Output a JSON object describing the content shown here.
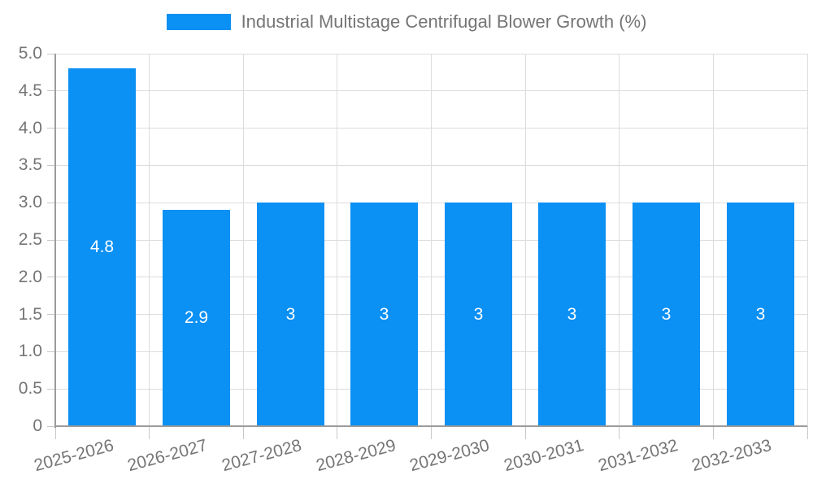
{
  "legend": {
    "label": "Industrial Multistage Centrifugal Blower Growth (%)"
  },
  "colors": {
    "bar": "#0b90f4",
    "grid": "#dcdcdc",
    "axis": "#9b9b9b",
    "tick": "#c8c8c8",
    "axis_text": "#757575",
    "bar_label_text": "#ffffff",
    "background": "#ffffff"
  },
  "chart_data": {
    "type": "bar",
    "title": "Industrial Multistage Centrifugal Blower Growth (%)",
    "categories": [
      "2025-2026",
      "2026-2027",
      "2027-2028",
      "2028-2029",
      "2029-2030",
      "2030-2031",
      "2031-2032",
      "2032-2033"
    ],
    "values": [
      4.8,
      2.9,
      3,
      3,
      3,
      3,
      3,
      3
    ],
    "value_labels": [
      "4.8",
      "2.9",
      "3",
      "3",
      "3",
      "3",
      "3",
      "3"
    ],
    "xlabel": "",
    "ylabel": "",
    "ylim": [
      0,
      5
    ],
    "ytick_step": 0.5,
    "ytick_labels": [
      "0",
      "0.5",
      "1.0",
      "1.5",
      "2.0",
      "2.5",
      "3.0",
      "3.5",
      "4.0",
      "4.5",
      "5.0"
    ],
    "grid": "on",
    "legend_position": "top-center",
    "xtick_rotation_deg": -15
  }
}
